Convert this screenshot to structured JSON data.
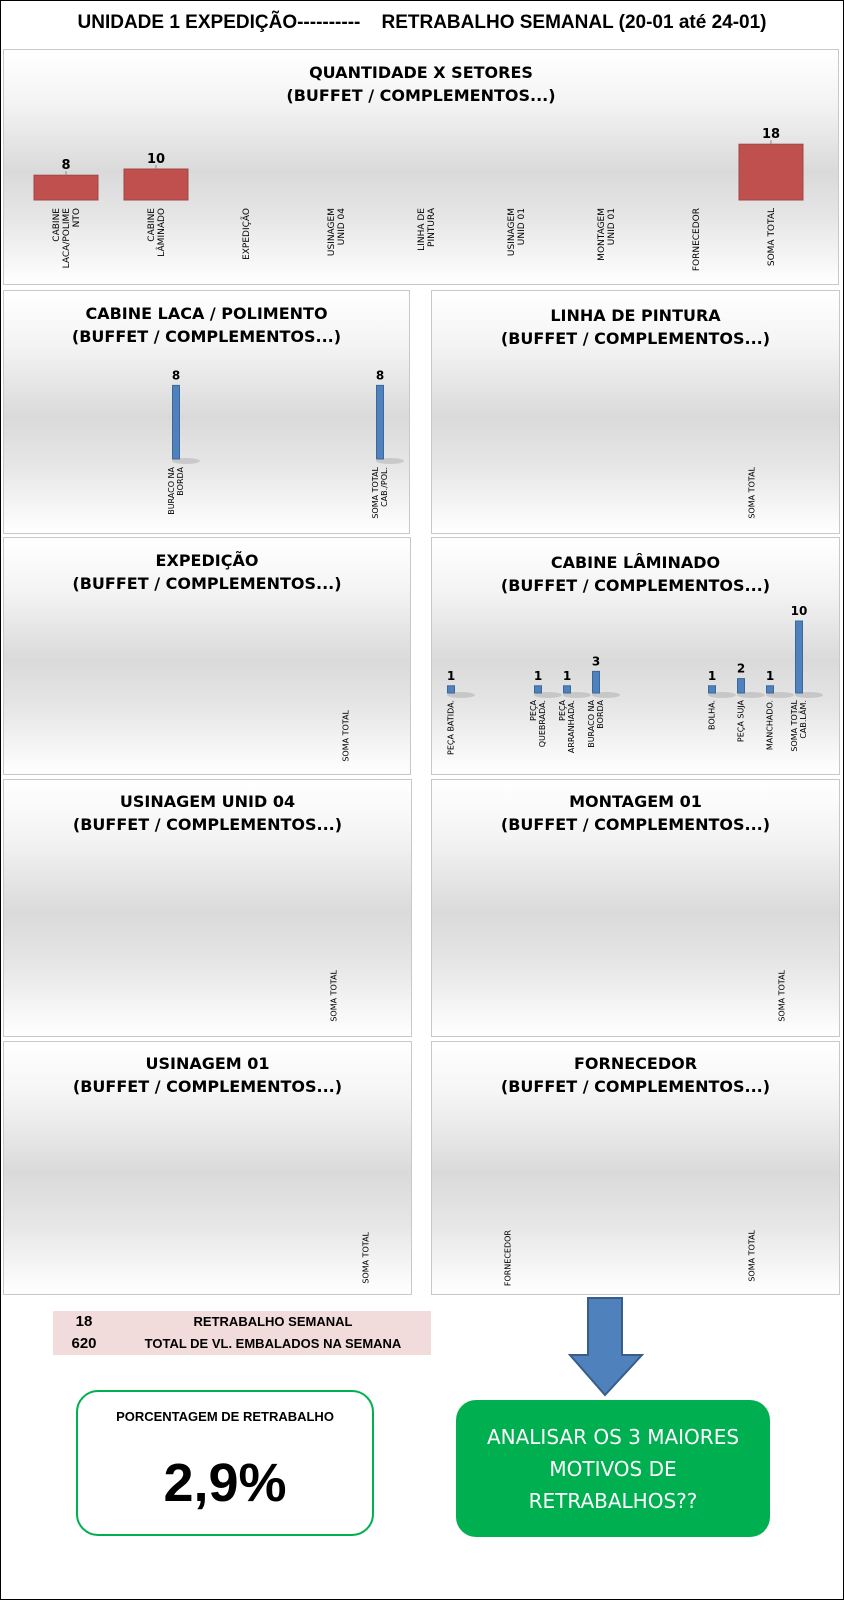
{
  "header": {
    "title": "UNIDADE 1 EXPEDIÇÃO----------    RETRABALHO SEMANAL (20-01 até 24-01)"
  },
  "colors": {
    "red_bar": "#c0504d",
    "blue_bar": "#4f81bd",
    "green": "#00b050",
    "arrow": "#4f81bd",
    "summary_bg": "#f2dcdb"
  },
  "summary": {
    "rows": [
      {
        "value": "18",
        "label": "RETRABALHO SEMANAL"
      },
      {
        "value": "620",
        "label": "TOTAL DE VL. EMBALADOS NA SEMANA"
      }
    ]
  },
  "percentage": {
    "label": "PORCENTAGEM DE RETRABALHO",
    "value": "2,9%"
  },
  "action": {
    "text": "ANALISAR OS 3 MAIORES MOTIVOS DE RETRABALHOS??"
  },
  "chart_data": [
    {
      "id": "setores",
      "type": "bar",
      "title": [
        "QUANTIDADE X SETORES",
        "(BUFFET / COMPLEMENTOS...)"
      ],
      "categories": [
        [
          "CABINE",
          "LACA/POLIME",
          "NTO"
        ],
        [
          "CABINE",
          "LÂMINADO"
        ],
        [
          "EXPEDIÇÃO"
        ],
        [
          "USINAGEM",
          "UNID 04"
        ],
        [
          "LINHA DE",
          "PINTURA"
        ],
        [
          "USINAGEM",
          "UNID 01"
        ],
        [
          "MONTAGEM",
          "UNID 01"
        ],
        [
          "FORNECEDOR"
        ],
        [
          "SOMA TOTAL"
        ]
      ],
      "values": [
        8,
        10,
        null,
        null,
        null,
        null,
        null,
        null,
        18
      ],
      "color": "#c0504d"
    },
    {
      "id": "cabine-laca",
      "type": "bar",
      "title": [
        "CABINE LACA / POLIMENTO",
        "(BUFFET / COMPLEMENTOS...)"
      ],
      "categories": [
        [
          "BURACO NA",
          "BORDA"
        ],
        [
          "SOMA TOTAL",
          "CAB./POL."
        ]
      ],
      "values": [
        8,
        8
      ],
      "color": "#4f81bd"
    },
    {
      "id": "linha-pintura",
      "type": "bar",
      "title": [
        "LINHA DE PINTURA",
        "(BUFFET / COMPLEMENTOS...)"
      ],
      "categories": [
        [
          "SOMA TOTAL"
        ]
      ],
      "values": [
        null
      ],
      "color": "#4f81bd"
    },
    {
      "id": "expedicao",
      "type": "bar",
      "title": [
        "EXPEDIÇÃO",
        "(BUFFET / COMPLEMENTOS...)"
      ],
      "categories": [
        [
          "SOMA TOTAL"
        ]
      ],
      "values": [
        null
      ],
      "color": "#4f81bd"
    },
    {
      "id": "cabine-laminado",
      "type": "bar",
      "title": [
        "CABINE LÂMINADO",
        "(BUFFET / COMPLEMENTOS...)"
      ],
      "categories": [
        [
          "PEÇA BATIDA."
        ],
        null,
        null,
        [
          "PEÇA",
          "QUEBRADA."
        ],
        [
          "PEÇA",
          "ARRANHADA."
        ],
        [
          "BURACO NA",
          "BORDA"
        ],
        null,
        null,
        null,
        [
          "BOLHA."
        ],
        [
          "PEÇA SUJA"
        ],
        [
          "MANCHADO."
        ],
        [
          "SOMA TOTAL",
          "CAB.LÂM."
        ]
      ],
      "values": [
        1,
        null,
        null,
        1,
        1,
        3,
        null,
        null,
        null,
        1,
        2,
        1,
        10
      ],
      "color": "#4f81bd"
    },
    {
      "id": "usinagem-04",
      "type": "bar",
      "title": [
        "USINAGEM UNID 04",
        "(BUFFET / COMPLEMENTOS...)"
      ],
      "categories": [
        [
          "SOMA TOTAL"
        ]
      ],
      "values": [
        null
      ],
      "color": "#4f81bd"
    },
    {
      "id": "montagem-01",
      "type": "bar",
      "title": [
        "MONTAGEM 01",
        "(BUFFET / COMPLEMENTOS...)"
      ],
      "categories": [
        [
          "SOMA TOTAL"
        ]
      ],
      "values": [
        null
      ],
      "color": "#4f81bd"
    },
    {
      "id": "usinagem-01",
      "type": "bar",
      "title": [
        "USINAGEM 01",
        "(BUFFET / COMPLEMENTOS...)"
      ],
      "categories": [
        [
          "SOMA TOTAL"
        ]
      ],
      "values": [
        null
      ],
      "color": "#4f81bd"
    },
    {
      "id": "fornecedor",
      "type": "bar",
      "title": [
        "FORNECEDOR",
        "(BUFFET / COMPLEMENTOS...)"
      ],
      "categories": [
        [
          "FORNECEDOR"
        ],
        [
          "SOMA TOTAL"
        ]
      ],
      "values": [
        null,
        null
      ],
      "color": "#4f81bd"
    }
  ]
}
